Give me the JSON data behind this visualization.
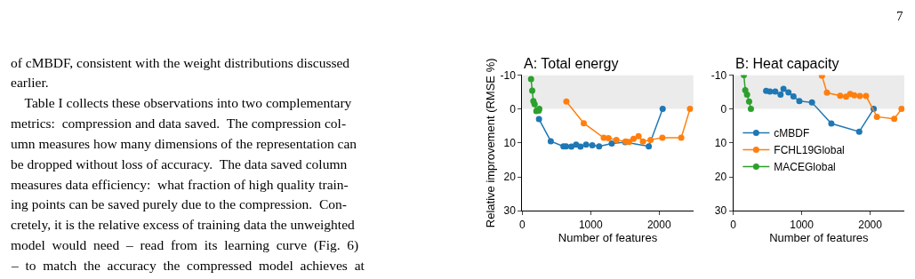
{
  "chart_data": [
    {
      "type": "other",
      "annotations": [
        "7",
        "of cMBDF, consistent with the weight distributions discussed",
        "earlier.",
        "    Table I collects these observations into two complementary",
        "metrics:  compression and data saved.  The compression col-",
        "umn measures how many dimensions of the representation can",
        "be dropped without loss of accuracy.  The data saved column",
        "measures data efficiency:  what fraction of high quality train-",
        "ing points can be saved purely due to the compression.  Con-",
        "cretely, it is the relative excess of training data the unweighted",
        "model  would  need  –  read  from  its  learning  curve  (Fig.  6)",
        "–  to  match  the  accuracy  the  compressed  model  achieves  at"
      ]
    },
    {
      "type": "line",
      "title": "A: Total energy",
      "xlabel": "Number of features",
      "ylabel": "Relative improvement (RMSE %)",
      "xlim": [
        0,
        2500
      ],
      "xticks": [
        0,
        1000,
        2000
      ],
      "ylim": [
        30,
        -10
      ],
      "yticks": [
        -10,
        0,
        10,
        20,
        30
      ],
      "marker": "circle",
      "grid": false,
      "legend": false,
      "bands": [
        {
          "axis": "y",
          "from": -10,
          "to": 0,
          "color": "#ebebeb"
        }
      ],
      "series": [
        {
          "color": "#1f77b4",
          "x": [
            245,
            417,
            602,
            641,
            718,
            787,
            851,
            933,
            1024,
            1123,
            1308,
            1505,
            1849,
            2052
          ],
          "values": [
            3,
            9.5,
            11,
            11,
            11.1,
            10.5,
            11.1,
            10.5,
            10.7,
            11,
            10.2,
            9.8,
            11,
            0
          ]
        },
        {
          "color": "#ff7f0e",
          "x": [
            645,
            899,
            1191,
            1260,
            1376,
            1510,
            1561,
            1626,
            1699,
            1763,
            1875,
            2047,
            2323,
            2451
          ],
          "values": [
            -2.2,
            4.2,
            8.5,
            8.6,
            9.1,
            9.6,
            9.7,
            8.8,
            8,
            9.6,
            9.1,
            8.5,
            8.5,
            0
          ]
        },
        {
          "color": "#2ca02c",
          "x": [
            129,
            146,
            163,
            181,
            206,
            241,
            249
          ],
          "values": [
            -8.8,
            -5.4,
            -2.3,
            -1.4,
            0.6,
            0.5,
            0
          ]
        }
      ]
    },
    {
      "type": "line",
      "title": "B: Heat capacity",
      "xlabel": "Number of features",
      "xlim": [
        0,
        2500
      ],
      "xticks": [
        0,
        1000,
        2000
      ],
      "ylim": [
        30,
        -10
      ],
      "yticks": [
        -10,
        0,
        10,
        20,
        30
      ],
      "marker": "circle",
      "grid": false,
      "legend": "left",
      "bands": [
        {
          "axis": "y",
          "from": -10,
          "to": 0,
          "color": "#ebebeb"
        }
      ],
      "series": [
        {
          "name": "cMBDF",
          "color": "#1f77b4",
          "x": [
            481,
            536,
            614,
            691,
            734,
            807,
            880,
            966,
            1150,
            1433,
            1841,
            2052
          ],
          "values": [
            -5.3,
            -5.1,
            -5.1,
            -4.2,
            -5.9,
            -4.9,
            -3.7,
            -2.3,
            -1.9,
            4.3,
            6.7,
            0
          ]
        },
        {
          "name": "FCHL19Global",
          "color": "#ff7f0e",
          "x": [
            1296,
            1369,
            1562,
            1648,
            1708,
            1768,
            1850,
            1940,
            2099,
            2352,
            2459
          ],
          "values": [
            -9.8,
            -4.8,
            -3.9,
            -3.6,
            -4.4,
            -4,
            -3.8,
            -3.8,
            2.3,
            2.9,
            0
          ]
        },
        {
          "name": "MACEGlobal",
          "color": "#2ca02c",
          "x": [
            155,
            176,
            202,
            232,
            258
          ],
          "values": [
            -10,
            -5.5,
            -4.2,
            -2.2,
            0
          ]
        }
      ]
    }
  ]
}
